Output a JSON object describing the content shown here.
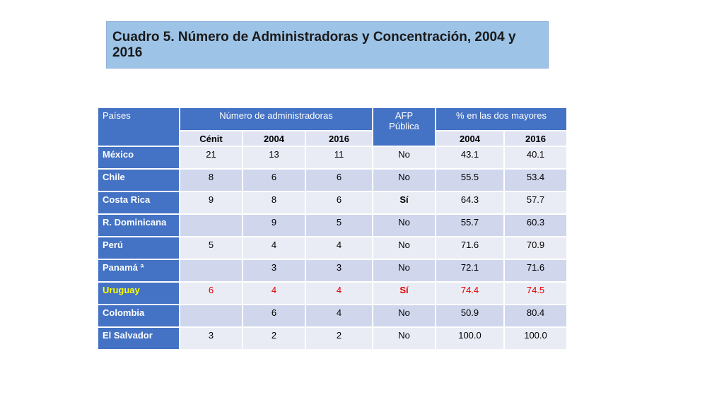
{
  "title": "Cuadro 5. Número de Administradoras y Concentración, 2004 y 2016",
  "table": {
    "headers": {
      "paises": "Países",
      "numero_admin": "Número de administradoras",
      "afp_publica": "AFP\nPública",
      "pct_dos_mayores": "% en las dos mayores"
    },
    "subheaders": {
      "cenit": "Cénit",
      "y2004": "2004",
      "y2016": "2016",
      "p2004": "2004",
      "p2016": "2016"
    },
    "rows": [
      {
        "pais": "México",
        "cenit": "21",
        "n2004": "13",
        "n2016": "11",
        "afp": "No",
        "p2004": "43.1",
        "p2016": "40.1"
      },
      {
        "pais": "Chile",
        "cenit": "8",
        "n2004": "6",
        "n2016": "6",
        "afp": "No",
        "p2004": "55.5",
        "p2016": "53.4"
      },
      {
        "pais": "Costa Rica",
        "cenit": "9",
        "n2004": "8",
        "n2016": "6",
        "afp": "Sí",
        "p2004": "64.3",
        "p2016": "57.7"
      },
      {
        "pais": "R. Dominicana",
        "cenit": "",
        "n2004": "9",
        "n2016": "5",
        "afp": "No",
        "p2004": "55.7",
        "p2016": "60.3"
      },
      {
        "pais": "Perú",
        "cenit": "5",
        "n2004": "4",
        "n2016": "4",
        "afp": "No",
        "p2004": "71.6",
        "p2016": "70.9"
      },
      {
        "pais": "Panamá ª",
        "cenit": "",
        "n2004": "3",
        "n2016": "3",
        "afp": "No",
        "p2004": "72.1",
        "p2016": "71.6"
      },
      {
        "pais": "Uruguay",
        "cenit": "6",
        "n2004": "4",
        "n2016": "4",
        "afp": "Sí",
        "p2004": "74.4",
        "p2016": "74.5"
      },
      {
        "pais": "Colombia",
        "cenit": "",
        "n2004": "6",
        "n2016": "4",
        "afp": "No",
        "p2004": "50.9",
        "p2016": "80.4"
      },
      {
        "pais": "El Salvador",
        "cenit": "3",
        "n2004": "2",
        "n2016": "2",
        "afp": "No",
        "p2004": "100.0",
        "p2016": "100.0"
      }
    ]
  },
  "colors": {
    "header_blue": "#4472c4",
    "title_bg": "#9dc3e6",
    "highlight_red": "#e00000",
    "highlight_yellow": "#ffff00"
  }
}
